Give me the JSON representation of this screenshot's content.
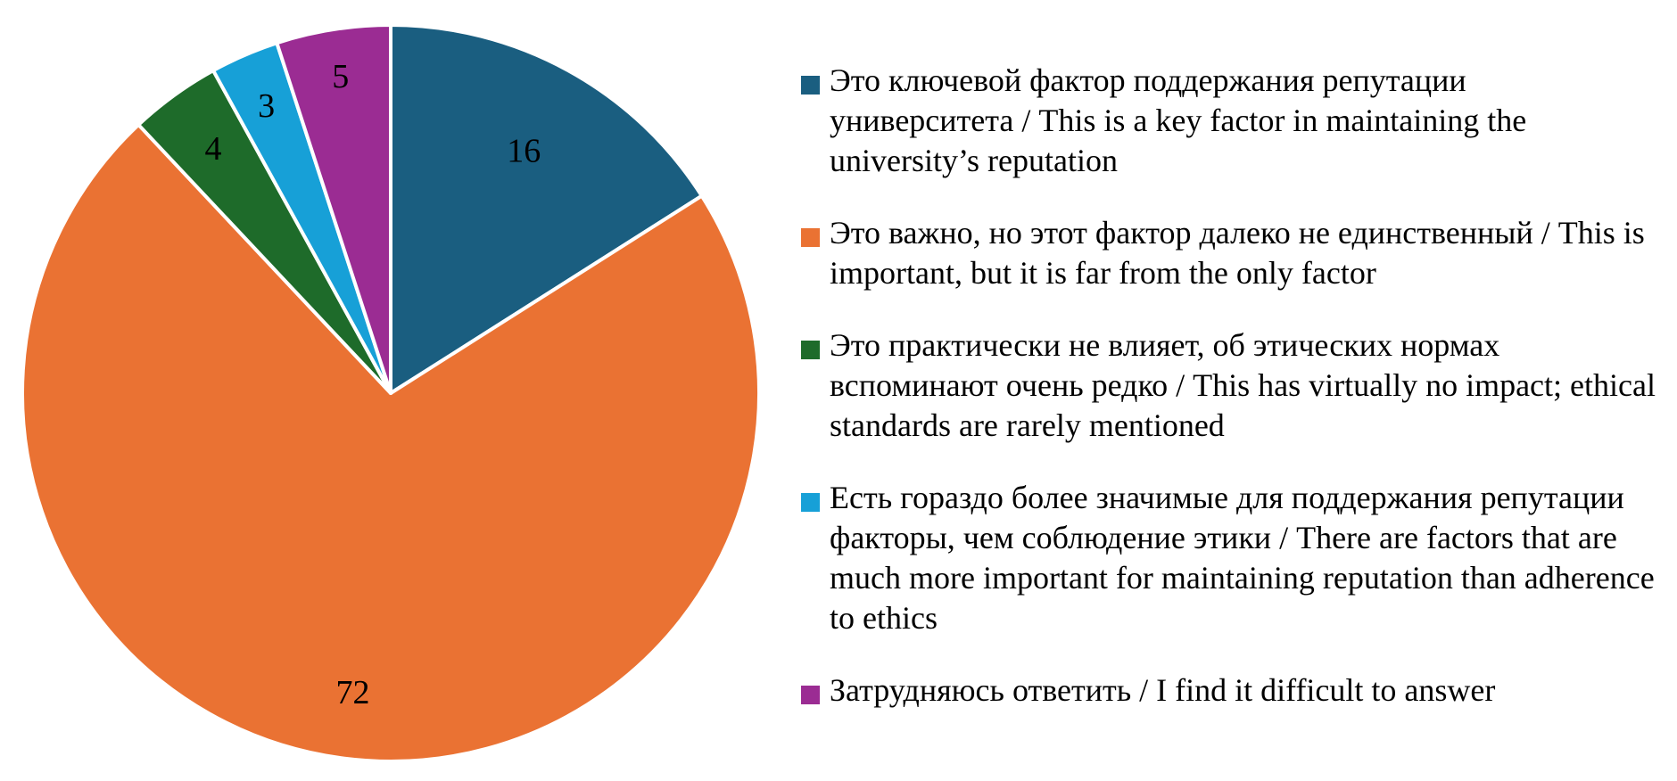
{
  "chart_data": {
    "type": "pie",
    "title": "",
    "legend_position": "right",
    "slices": [
      {
        "label": "Это ключевой фактор поддержания репутации университета / This is a key factor in maintaining the university’s reputation",
        "value": 16,
        "color": "#1A5E80"
      },
      {
        "label": "Это важно, но этот фактор далеко не единственный / This is important, but it is far from the only factor",
        "value": 72,
        "color": "#EA7233"
      },
      {
        "label": "Это практически не влияет, об этических нормах вспоминают очень редко / This has virtually no impact; ethical standards are rarely mentioned",
        "value": 4,
        "color": "#1E6B2A"
      },
      {
        "label": "Есть гораздо более значимые для поддержания репутации факторы, чем соблюдение этики / There are factors that are much more important for maintaining reputation than adherence to ethics",
        "value": 3,
        "color": "#17A0D7"
      },
      {
        "label": "Затрудняюсь ответить / I find it difficult to answer",
        "value": 5,
        "color": "#9B2C93"
      }
    ]
  }
}
